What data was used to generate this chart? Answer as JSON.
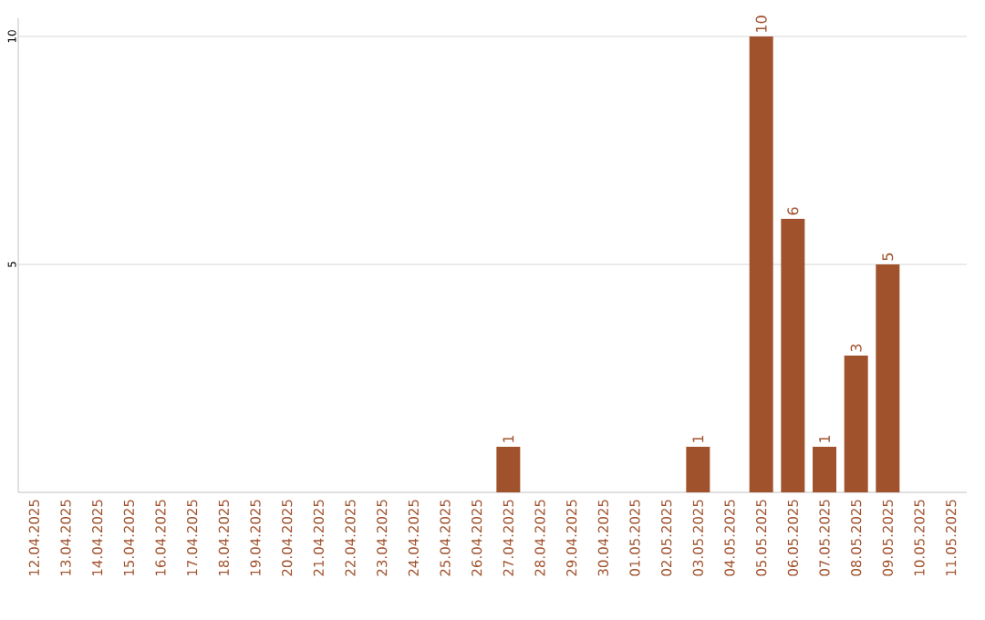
{
  "chart_data": {
    "type": "bar",
    "categories": [
      "12.04.2025",
      "13.04.2025",
      "14.04.2025",
      "15.04.2025",
      "16.04.2025",
      "17.04.2025",
      "18.04.2025",
      "19.04.2025",
      "20.04.2025",
      "21.04.2025",
      "22.04.2025",
      "23.04.2025",
      "24.04.2025",
      "25.04.2025",
      "26.04.2025",
      "27.04.2025",
      "28.04.2025",
      "29.04.2025",
      "30.04.2025",
      "01.05.2025",
      "02.05.2025",
      "03.05.2025",
      "04.05.2025",
      "05.05.2025",
      "06.05.2025",
      "07.05.2025",
      "08.05.2025",
      "09.05.2025",
      "10.05.2025",
      "11.05.2025"
    ],
    "values": [
      0,
      0,
      0,
      0,
      0,
      0,
      0,
      0,
      0,
      0,
      0,
      0,
      0,
      0,
      0,
      1,
      0,
      0,
      0,
      0,
      0,
      1,
      0,
      10,
      6,
      1,
      3,
      5,
      0,
      0
    ],
    "value_labels": [
      null,
      null,
      null,
      null,
      null,
      null,
      null,
      null,
      null,
      null,
      null,
      null,
      null,
      null,
      null,
      "1",
      null,
      null,
      null,
      null,
      null,
      "1",
      null,
      "10",
      "6",
      "1",
      "3",
      "5",
      null,
      null
    ],
    "color": "#a0522d",
    "ylim": [
      0,
      10.4
    ],
    "yticks": [
      5,
      10
    ],
    "grid": "y",
    "legend": false
  }
}
